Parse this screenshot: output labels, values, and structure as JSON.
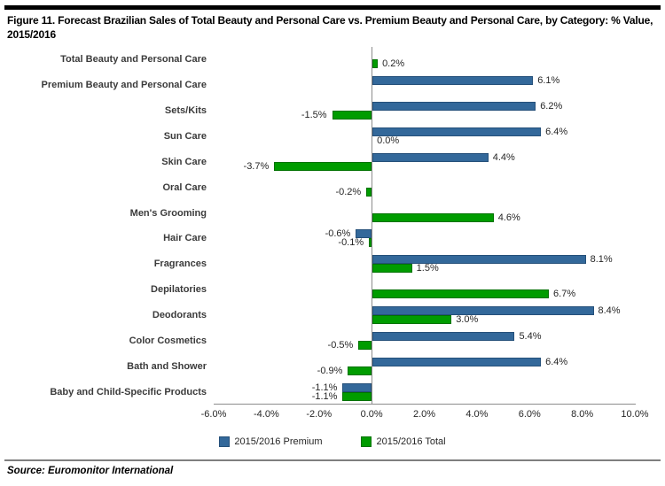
{
  "figure": {
    "title": "Figure 11. Forecast Brazilian Sales of Total Beauty and Personal Care vs. Premium Beauty and Personal Care, by Category: % Value, 2015/2016",
    "source": "Source: Euromonitor International"
  },
  "chart_data": {
    "type": "bar",
    "orientation": "horizontal",
    "title": "Figure 11. Forecast Brazilian Sales of Total Beauty and Personal Care vs. Premium Beauty and Personal Care, by Category: % Value, 2015/2016",
    "categories": [
      "Total Beauty and Personal Care",
      "Premium Beauty and Personal Care",
      "Sets/Kits",
      "Sun Care",
      "Skin Care",
      "Oral Care",
      "Men's Grooming",
      "Hair Care",
      "Fragrances",
      "Depilatories",
      "Deodorants",
      "Color Cosmetics",
      "Bath and Shower",
      "Baby and Child-Specific Products"
    ],
    "series": [
      {
        "name": "2015/2016 Premium",
        "color": "#33689A",
        "border_color": "#25507A",
        "values": [
          null,
          6.1,
          6.2,
          6.4,
          4.4,
          null,
          null,
          -0.6,
          8.1,
          null,
          8.4,
          5.4,
          6.4,
          -1.1
        ],
        "labels": [
          null,
          "6.1%",
          "6.2%",
          "6.4%",
          "4.4%",
          null,
          null,
          "-0.6%",
          "8.1%",
          null,
          "8.4%",
          "5.4%",
          "6.4%",
          "-1.1%"
        ]
      },
      {
        "name": "2015/2016 Total",
        "color": "#009C00",
        "border_color": "#007200",
        "values": [
          0.2,
          null,
          -1.5,
          0.0,
          -3.7,
          -0.2,
          4.6,
          -0.1,
          1.5,
          6.7,
          3.0,
          -0.5,
          -0.9,
          -1.1
        ],
        "labels": [
          "0.2%",
          null,
          "-1.5%",
          "0.0%",
          "-3.7%",
          "-0.2%",
          "4.6%",
          "-0.1%",
          "1.5%",
          "6.7%",
          "3.0%",
          "-0.5%",
          "-0.9%",
          "-1.1%"
        ]
      }
    ],
    "xlim": [
      -6,
      10
    ],
    "x_ticks": [
      "-6.0%",
      "-4.0%",
      "-2.0%",
      "0.0%",
      "2.0%",
      "4.0%",
      "6.0%",
      "8.0%",
      "10.0%"
    ],
    "x_tick_values": [
      -6,
      -4,
      -2,
      0,
      2,
      4,
      6,
      8,
      10
    ],
    "grid": false,
    "legend_position": "bottom",
    "value_labels": true,
    "axis_color": "#8c8c8c"
  }
}
